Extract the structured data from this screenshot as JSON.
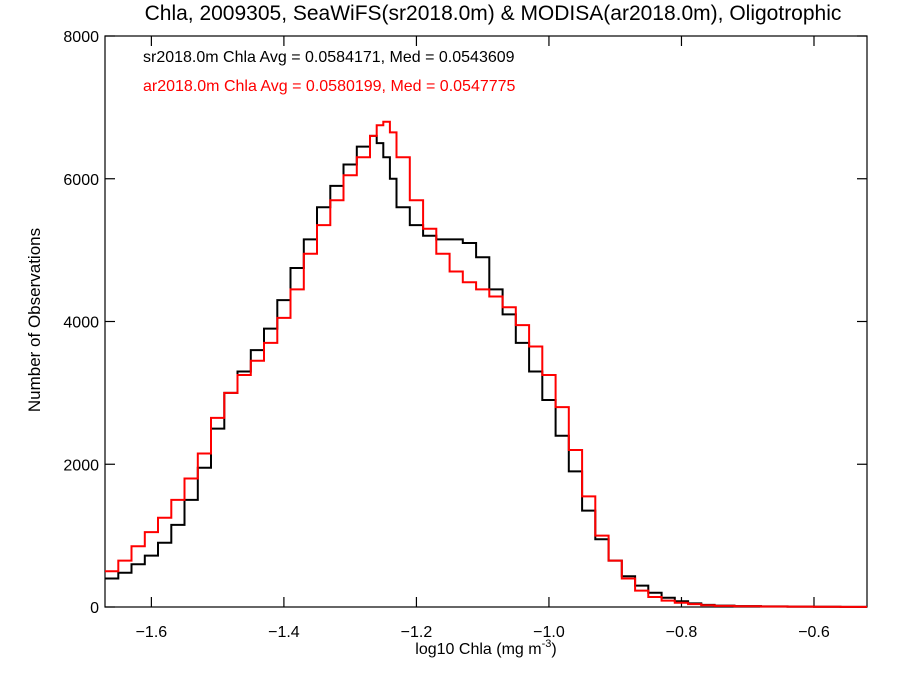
{
  "chart_data": {
    "type": "line",
    "title": "Chla, 2009305, SeaWiFS(sr2018.0m) & MODISA(ar2018.0m), Oligotrophic",
    "xlabel": "log10 Chla (mg m",
    "xlabel_sup": "-3",
    "xlabel_close": ")",
    "ylabel": "Number of Observations",
    "xlim": [
      -1.67,
      -0.52
    ],
    "ylim": [
      0,
      8000
    ],
    "x_ticks": [
      -1.6,
      -1.4,
      -1.2,
      -1.0,
      -0.8,
      -0.6
    ],
    "x_tick_labels": [
      "−1.6",
      "−1.4",
      "−1.2",
      "−1.0",
      "−0.8",
      "−0.6"
    ],
    "y_ticks": [
      0,
      2000,
      4000,
      6000,
      8000
    ],
    "y_tick_labels": [
      "0",
      "2000",
      "4000",
      "6000",
      "8000"
    ],
    "grid": false,
    "legend_position": "top-left",
    "series": [
      {
        "name": "sr2018.0m Chla Avg = 0.0584171, Med = 0.0543609",
        "color": "#000000",
        "step": true,
        "x": [
          -1.67,
          -1.65,
          -1.63,
          -1.61,
          -1.59,
          -1.57,
          -1.55,
          -1.53,
          -1.51,
          -1.49,
          -1.47,
          -1.45,
          -1.43,
          -1.41,
          -1.39,
          -1.37,
          -1.35,
          -1.33,
          -1.31,
          -1.29,
          -1.27,
          -1.26,
          -1.25,
          -1.24,
          -1.23,
          -1.21,
          -1.19,
          -1.17,
          -1.15,
          -1.13,
          -1.11,
          -1.09,
          -1.07,
          -1.05,
          -1.03,
          -1.01,
          -0.99,
          -0.97,
          -0.95,
          -0.93,
          -0.91,
          -0.89,
          -0.87,
          -0.85,
          -0.83,
          -0.81,
          -0.79,
          -0.77,
          -0.75,
          -0.72,
          -0.68,
          -0.64,
          -0.6,
          -0.56,
          -0.52
        ],
        "values": [
          400,
          480,
          600,
          720,
          900,
          1150,
          1500,
          1950,
          2500,
          3000,
          3300,
          3600,
          3900,
          4300,
          4750,
          5150,
          5600,
          5900,
          6200,
          6450,
          6600,
          6500,
          6300,
          6000,
          5600,
          5350,
          5200,
          5150,
          5150,
          5100,
          4900,
          4450,
          4100,
          3700,
          3300,
          2900,
          2400,
          1900,
          1350,
          950,
          650,
          430,
          300,
          200,
          130,
          80,
          50,
          30,
          20,
          12,
          8,
          5,
          3,
          2,
          1
        ]
      },
      {
        "name": "ar2018.0m Chla Avg = 0.0580199, Med = 0.0547775",
        "color": "#ff0000",
        "step": true,
        "x": [
          -1.67,
          -1.65,
          -1.63,
          -1.61,
          -1.59,
          -1.57,
          -1.55,
          -1.53,
          -1.51,
          -1.49,
          -1.47,
          -1.45,
          -1.43,
          -1.41,
          -1.39,
          -1.37,
          -1.35,
          -1.33,
          -1.31,
          -1.29,
          -1.27,
          -1.26,
          -1.25,
          -1.24,
          -1.23,
          -1.21,
          -1.19,
          -1.17,
          -1.15,
          -1.13,
          -1.11,
          -1.09,
          -1.07,
          -1.05,
          -1.03,
          -1.01,
          -0.99,
          -0.97,
          -0.95,
          -0.93,
          -0.91,
          -0.89,
          -0.87,
          -0.85,
          -0.83,
          -0.81,
          -0.79,
          -0.77,
          -0.75,
          -0.72,
          -0.68,
          -0.64,
          -0.6,
          -0.56,
          -0.52
        ],
        "values": [
          500,
          650,
          850,
          1050,
          1250,
          1500,
          1800,
          2150,
          2650,
          3000,
          3250,
          3450,
          3700,
          4050,
          4450,
          4950,
          5350,
          5700,
          6050,
          6300,
          6600,
          6750,
          6800,
          6650,
          6300,
          5700,
          5300,
          4950,
          4700,
          4550,
          4450,
          4350,
          4200,
          3950,
          3650,
          3250,
          2800,
          2200,
          1550,
          1000,
          650,
          400,
          230,
          140,
          90,
          60,
          40,
          25,
          15,
          10,
          7,
          5,
          3,
          2,
          1
        ]
      }
    ]
  }
}
